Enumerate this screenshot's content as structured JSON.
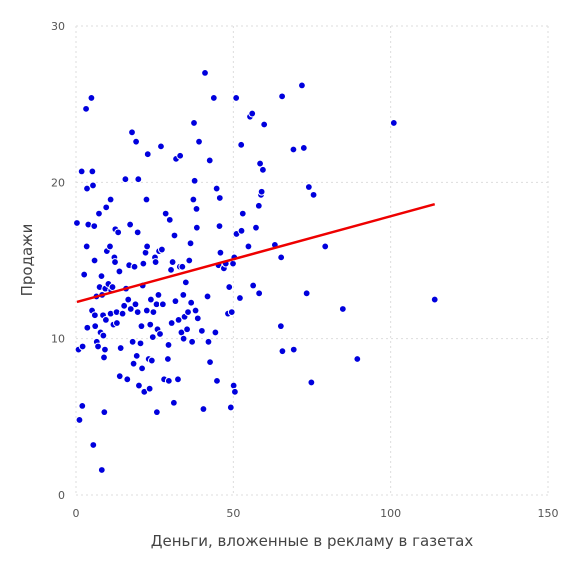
{
  "chart_data": {
    "type": "scatter",
    "xlabel": "Деньги, вложенные в рекламу в газетах",
    "ylabel": "Продажи",
    "xlim": [
      0,
      150
    ],
    "ylim": [
      0,
      30
    ],
    "x_ticks": [
      0,
      50,
      100,
      150
    ],
    "y_ticks": [
      0,
      10,
      20,
      30
    ],
    "x_tick_labels": [
      "0",
      "50",
      "100",
      "150"
    ],
    "y_tick_labels": [
      "0",
      "10",
      "20",
      "30"
    ],
    "grid": true,
    "colors": {
      "points": "#0000dd",
      "trend": "#ee0000"
    },
    "trend_line": {
      "x": [
        0.3,
        114
      ],
      "y": [
        12.35,
        18.6
      ]
    },
    "points": [
      [
        0.3,
        17.4
      ],
      [
        0.8,
        9.3
      ],
      [
        1.1,
        4.8
      ],
      [
        1.8,
        20.7
      ],
      [
        2.0,
        5.7
      ],
      [
        2.1,
        9.5
      ],
      [
        2.6,
        14.1
      ],
      [
        3.2,
        24.7
      ],
      [
        3.4,
        15.9
      ],
      [
        3.5,
        19.6
      ],
      [
        3.6,
        10.7
      ],
      [
        3.9,
        17.3
      ],
      [
        4.9,
        25.4
      ],
      [
        5.1,
        11.8
      ],
      [
        5.4,
        19.8
      ],
      [
        5.2,
        20.7
      ],
      [
        5.5,
        3.2
      ],
      [
        5.8,
        17.2
      ],
      [
        5.9,
        15.0
      ],
      [
        6.0,
        11.5
      ],
      [
        6.1,
        10.8
      ],
      [
        6.5,
        12.7
      ],
      [
        6.6,
        9.8
      ],
      [
        7.0,
        9.5
      ],
      [
        7.3,
        18.0
      ],
      [
        7.5,
        13.3
      ],
      [
        7.8,
        10.4
      ],
      [
        8.1,
        14.0
      ],
      [
        8.2,
        1.6
      ],
      [
        8.3,
        12.8
      ],
      [
        8.6,
        11.5
      ],
      [
        8.7,
        10.2
      ],
      [
        8.9,
        8.8
      ],
      [
        9.0,
        5.3
      ],
      [
        9.2,
        9.3
      ],
      [
        9.3,
        13.2
      ],
      [
        9.5,
        11.2
      ],
      [
        9.6,
        18.4
      ],
      [
        9.8,
        15.6
      ],
      [
        10.3,
        13.5
      ],
      [
        10.8,
        15.9
      ],
      [
        11.0,
        11.6
      ],
      [
        11.0,
        18.9
      ],
      [
        11.2,
        13.1
      ],
      [
        11.6,
        13.3
      ],
      [
        11.9,
        10.9
      ],
      [
        12.2,
        15.2
      ],
      [
        12.4,
        14.9
      ],
      [
        12.5,
        17.0
      ],
      [
        12.9,
        11.7
      ],
      [
        13.0,
        11.0
      ],
      [
        13.4,
        16.8
      ],
      [
        13.8,
        14.3
      ],
      [
        13.9,
        7.6
      ],
      [
        14.2,
        9.4
      ],
      [
        14.8,
        11.6
      ],
      [
        15.3,
        12.1
      ],
      [
        15.7,
        20.2
      ],
      [
        15.9,
        13.2
      ],
      [
        16.3,
        7.4
      ],
      [
        16.6,
        12.5
      ],
      [
        16.9,
        14.7
      ],
      [
        17.2,
        17.3
      ],
      [
        17.4,
        11.9
      ],
      [
        17.8,
        23.2
      ],
      [
        18.0,
        9.8
      ],
      [
        18.3,
        8.4
      ],
      [
        18.6,
        14.6
      ],
      [
        18.9,
        12.2
      ],
      [
        19.1,
        22.6
      ],
      [
        19.3,
        8.9
      ],
      [
        19.6,
        11.7
      ],
      [
        19.6,
        16.8
      ],
      [
        19.8,
        20.2
      ],
      [
        20.0,
        7.0
      ],
      [
        20.5,
        9.7
      ],
      [
        20.8,
        10.8
      ],
      [
        21.0,
        8.1
      ],
      [
        21.2,
        13.4
      ],
      [
        21.4,
        14.8
      ],
      [
        21.7,
        6.6
      ],
      [
        22.1,
        15.5
      ],
      [
        22.4,
        18.9
      ],
      [
        22.5,
        11.8
      ],
      [
        22.6,
        15.9
      ],
      [
        22.8,
        21.8
      ],
      [
        23.1,
        8.7
      ],
      [
        23.4,
        6.8
      ],
      [
        23.6,
        10.9
      ],
      [
        23.8,
        12.5
      ],
      [
        24.1,
        8.6
      ],
      [
        24.4,
        10.1
      ],
      [
        24.6,
        11.7
      ],
      [
        25.1,
        15.2
      ],
      [
        25.3,
        14.9
      ],
      [
        25.6,
        12.2
      ],
      [
        25.7,
        5.3
      ],
      [
        25.9,
        10.6
      ],
      [
        26.2,
        12.8
      ],
      [
        26.4,
        15.6
      ],
      [
        26.7,
        10.3
      ],
      [
        27.0,
        22.3
      ],
      [
        27.3,
        15.7
      ],
      [
        27.6,
        12.2
      ],
      [
        28.0,
        7.4
      ],
      [
        28.5,
        18.0
      ],
      [
        29.2,
        8.7
      ],
      [
        29.4,
        9.6
      ],
      [
        29.5,
        7.3
      ],
      [
        29.8,
        17.6
      ],
      [
        30.2,
        14.4
      ],
      [
        30.4,
        11.0
      ],
      [
        30.7,
        14.9
      ],
      [
        31.1,
        5.9
      ],
      [
        31.3,
        16.6
      ],
      [
        31.6,
        12.4
      ],
      [
        31.8,
        21.5
      ],
      [
        32.4,
        7.4
      ],
      [
        32.6,
        11.2
      ],
      [
        33.0,
        14.6
      ],
      [
        33.1,
        21.7
      ],
      [
        33.5,
        10.4
      ],
      [
        33.8,
        14.6
      ],
      [
        34.1,
        12.8
      ],
      [
        34.2,
        10.0
      ],
      [
        34.5,
        11.4
      ],
      [
        34.9,
        13.6
      ],
      [
        35.3,
        10.6
      ],
      [
        35.6,
        11.7
      ],
      [
        36.0,
        15.0
      ],
      [
        36.4,
        16.1
      ],
      [
        36.6,
        12.3
      ],
      [
        36.9,
        9.8
      ],
      [
        37.3,
        18.9
      ],
      [
        37.5,
        23.8
      ],
      [
        37.7,
        20.1
      ],
      [
        38.0,
        11.8
      ],
      [
        38.3,
        18.3
      ],
      [
        38.4,
        17.1
      ],
      [
        38.7,
        11.3
      ],
      [
        39.1,
        22.6
      ],
      [
        40.0,
        10.5
      ],
      [
        40.5,
        5.5
      ],
      [
        41.0,
        27.0
      ],
      [
        41.8,
        12.7
      ],
      [
        42.1,
        9.8
      ],
      [
        42.5,
        21.4
      ],
      [
        42.6,
        8.5
      ],
      [
        43.8,
        25.4
      ],
      [
        44.3,
        10.4
      ],
      [
        44.7,
        19.6
      ],
      [
        44.8,
        7.3
      ],
      [
        45.3,
        14.7
      ],
      [
        45.6,
        17.2
      ],
      [
        45.7,
        19.0
      ],
      [
        45.9,
        15.5
      ],
      [
        47.0,
        14.5
      ],
      [
        47.6,
        14.8
      ],
      [
        48.3,
        11.6
      ],
      [
        48.7,
        13.3
      ],
      [
        49.2,
        5.6
      ],
      [
        49.5,
        11.7
      ],
      [
        49.9,
        14.8
      ],
      [
        50.1,
        7.0
      ],
      [
        50.3,
        15.2
      ],
      [
        50.5,
        6.6
      ],
      [
        50.9,
        25.4
      ],
      [
        51.0,
        16.7
      ],
      [
        52.1,
        12.6
      ],
      [
        52.5,
        22.4
      ],
      [
        52.6,
        16.9
      ],
      [
        53.0,
        18.0
      ],
      [
        54.8,
        15.9
      ],
      [
        55.3,
        24.2
      ],
      [
        56.0,
        24.4
      ],
      [
        56.3,
        13.4
      ],
      [
        57.2,
        17.1
      ],
      [
        58.1,
        18.5
      ],
      [
        58.2,
        12.9
      ],
      [
        58.5,
        21.2
      ],
      [
        58.8,
        19.2
      ],
      [
        59.0,
        19.4
      ],
      [
        59.4,
        20.8
      ],
      [
        59.8,
        23.7
      ],
      [
        63.2,
        16.0
      ],
      [
        65.1,
        10.8
      ],
      [
        65.2,
        15.2
      ],
      [
        65.5,
        25.5
      ],
      [
        65.6,
        9.2
      ],
      [
        69.1,
        22.1
      ],
      [
        69.2,
        9.3
      ],
      [
        71.8,
        26.2
      ],
      [
        72.4,
        22.2
      ],
      [
        73.3,
        12.9
      ],
      [
        74.0,
        19.7
      ],
      [
        74.8,
        7.2
      ],
      [
        75.5,
        19.2
      ],
      [
        79.2,
        15.9
      ],
      [
        84.8,
        11.9
      ],
      [
        89.4,
        8.7
      ],
      [
        101.0,
        23.8
      ],
      [
        114.0,
        12.5
      ]
    ]
  }
}
